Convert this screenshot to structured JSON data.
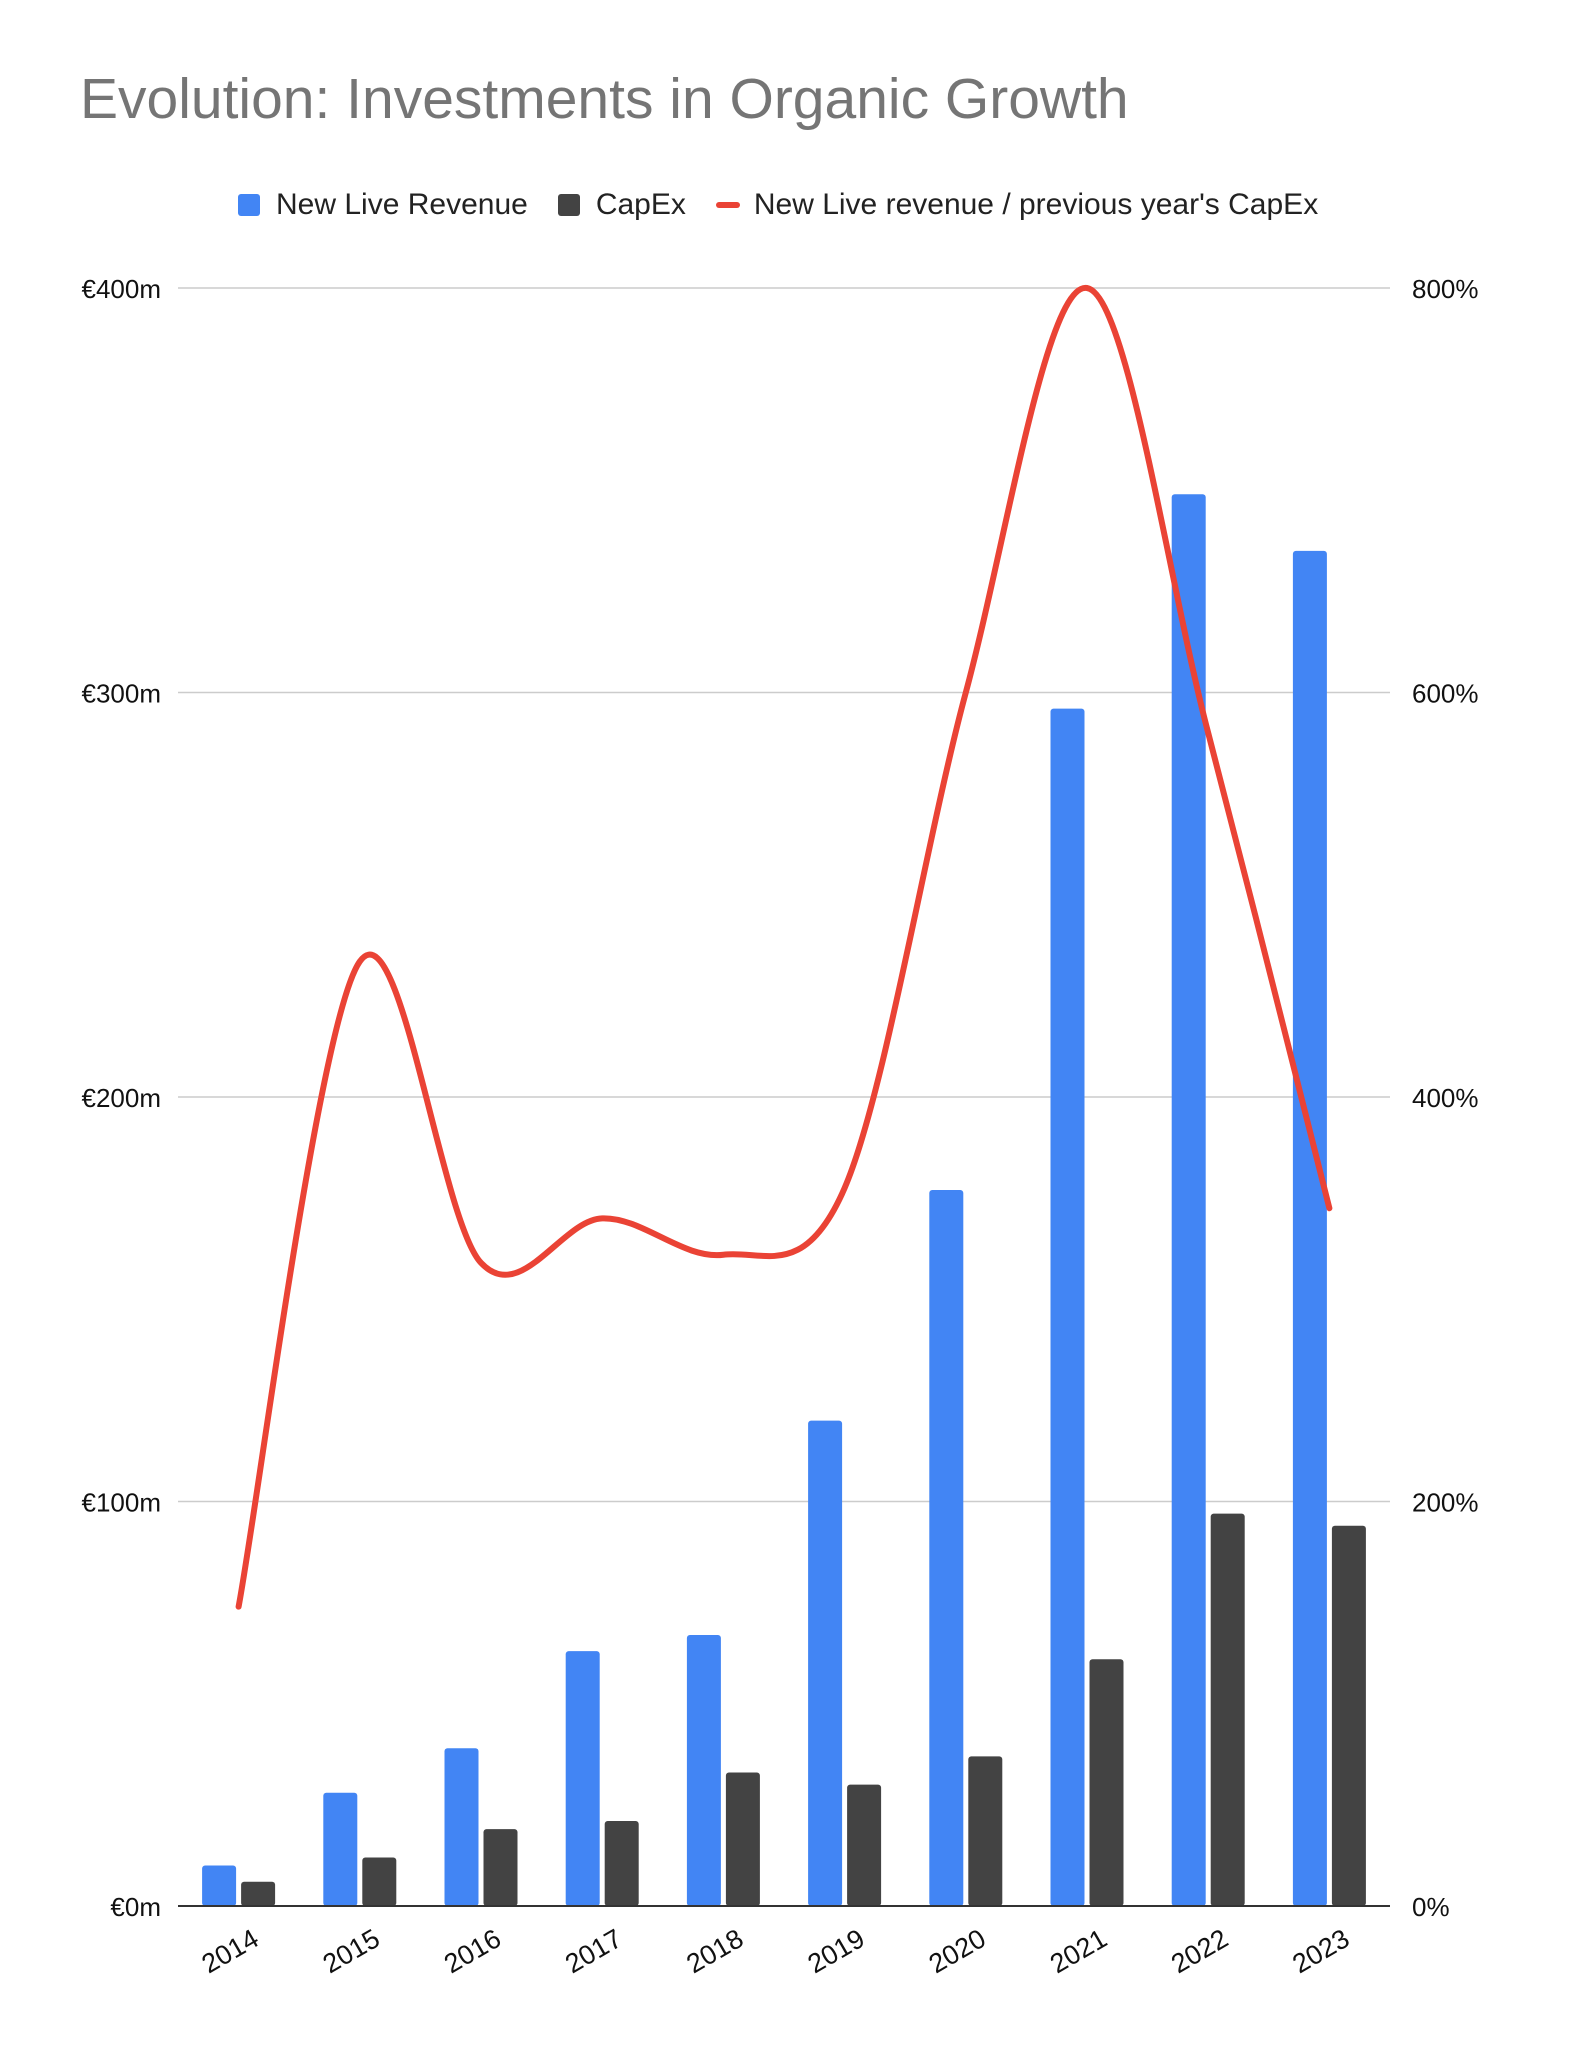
{
  "chart_data": {
    "type": "bar",
    "title": "Evolution: Investments in Organic Growth",
    "categories": [
      "2014",
      "2015",
      "2016",
      "2017",
      "2018",
      "2019",
      "2020",
      "2021",
      "2022",
      "2023"
    ],
    "series": [
      {
        "name": "New Live Revenue",
        "type": "bar",
        "axis": "left",
        "color": "#4285f4",
        "values": [
          10,
          28,
          39,
          63,
          67,
          120,
          177,
          296,
          349,
          335
        ]
      },
      {
        "name": "CapEx",
        "type": "bar",
        "axis": "left",
        "color": "#434343",
        "values": [
          6,
          12,
          19,
          21,
          33,
          30,
          37,
          61,
          97,
          94
        ]
      },
      {
        "name": "New Live revenue / previous year's CapEx",
        "type": "line",
        "axis": "right",
        "color": "#ea4335",
        "values": [
          148,
          467,
          318,
          340,
          322,
          355,
          600,
          800,
          580,
          345
        ]
      }
    ],
    "y_left": {
      "min": 0,
      "max": 400,
      "ticks": [
        0,
        100,
        200,
        300,
        400
      ],
      "tick_labels": [
        "€0m",
        "€100m",
        "€200m",
        "€300m",
        "€400m"
      ]
    },
    "y_right": {
      "min": 0,
      "max": 800,
      "ticks": [
        0,
        200,
        400,
        600,
        800
      ],
      "tick_labels": [
        "0%",
        "200%",
        "400%",
        "600%",
        "800%"
      ]
    },
    "grid": true,
    "legend_position": "top"
  }
}
